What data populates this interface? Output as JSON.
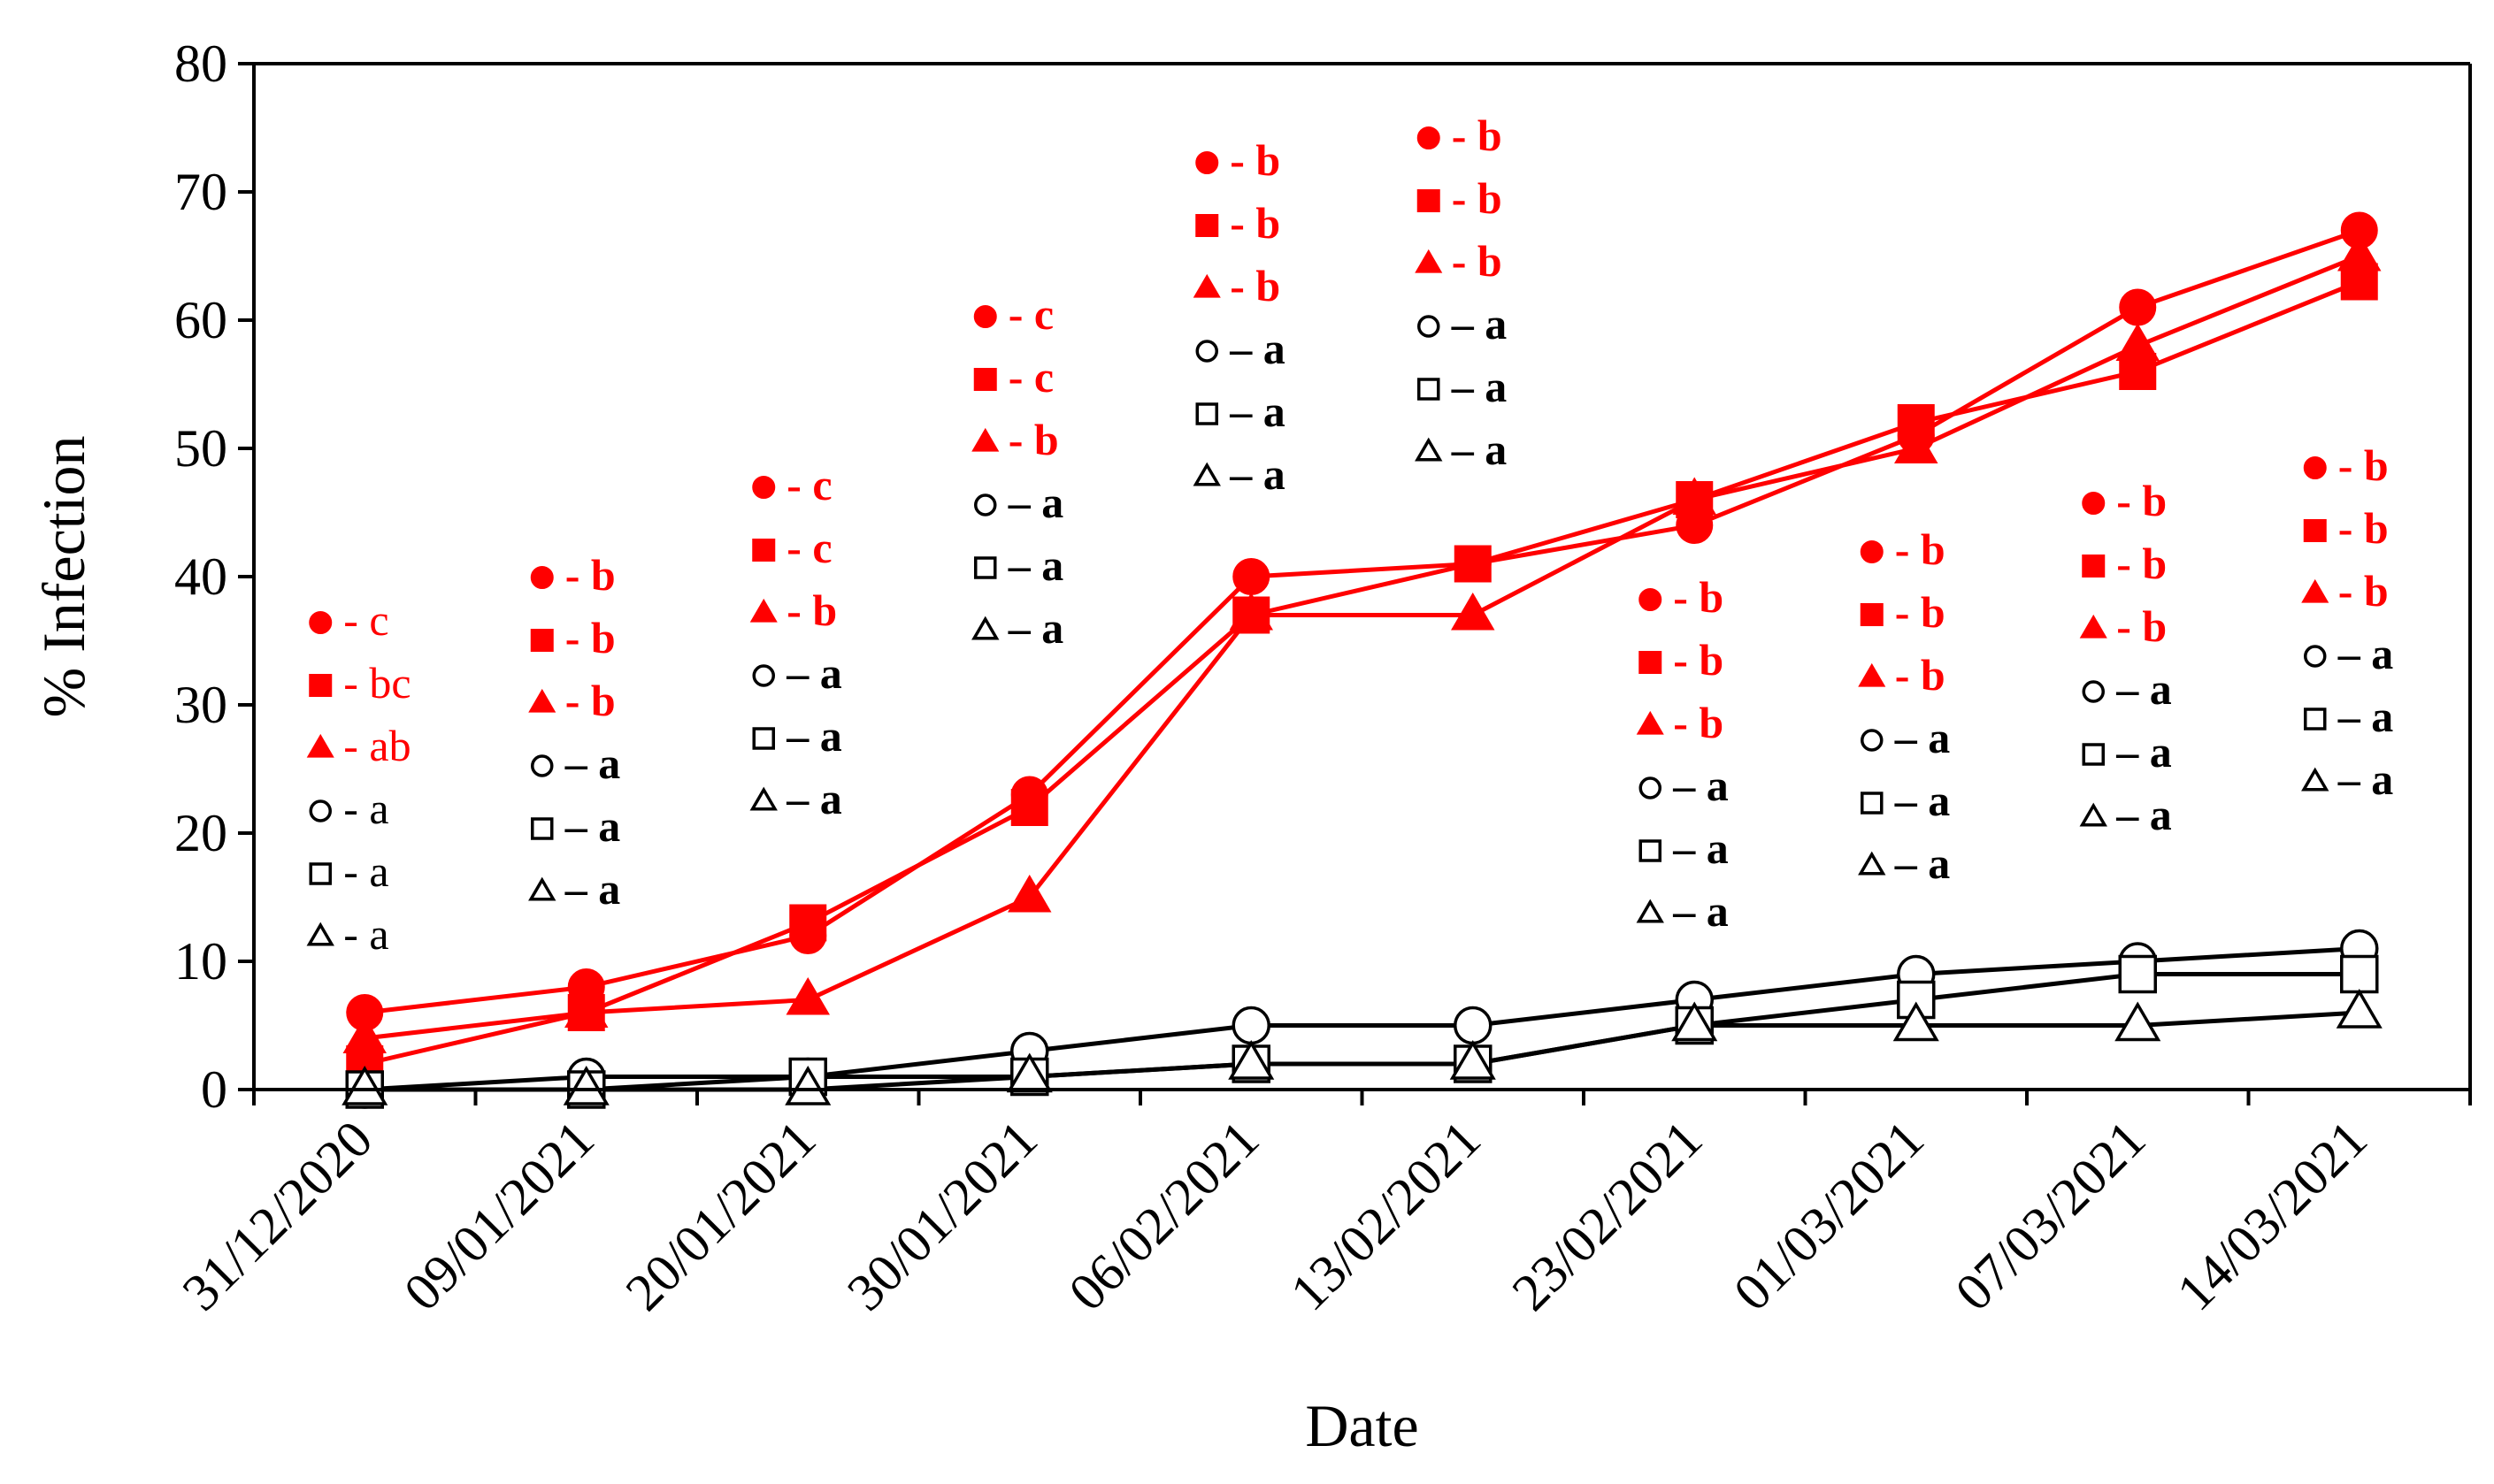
{
  "chart_data": {
    "type": "line",
    "title": "",
    "xlabel": "Date",
    "ylabel": "% Infection",
    "ylim": [
      0,
      80
    ],
    "yticks": [
      0,
      10,
      20,
      30,
      40,
      50,
      60,
      70,
      80
    ],
    "categories": [
      "31/12/2020",
      "09/01/2021",
      "20/01/2021",
      "30/01/2021",
      "06/02/2021",
      "13/02/2021",
      "23/02/2021",
      "01/03/2021",
      "07/03/2021",
      "14/03/2021"
    ],
    "colors": {
      "red": "#ff0000",
      "black": "#000000"
    },
    "series": [
      {
        "name": "filled circle",
        "marker": "circle",
        "filled": true,
        "color": "#ff0000",
        "values": [
          6,
          8,
          12,
          23,
          40,
          41,
          44,
          51,
          61,
          67
        ]
      },
      {
        "name": "filled square",
        "marker": "square",
        "filled": true,
        "color": "#ff0000",
        "values": [
          2,
          6,
          13,
          22,
          37,
          41,
          46,
          52,
          56,
          63
        ]
      },
      {
        "name": "filled triangle",
        "marker": "triangle",
        "filled": true,
        "color": "#ff0000",
        "values": [
          4,
          6,
          7,
          15,
          37,
          37,
          46,
          50,
          58,
          65
        ]
      },
      {
        "name": "open circle",
        "marker": "circle",
        "filled": false,
        "color": "#000000",
        "values": [
          0,
          1,
          1,
          3,
          5,
          5,
          7,
          9,
          10,
          11
        ]
      },
      {
        "name": "open square",
        "marker": "square",
        "filled": false,
        "color": "#000000",
        "values": [
          0,
          0,
          1,
          1,
          2,
          2,
          5,
          7,
          9,
          9
        ]
      },
      {
        "name": "open triangle",
        "marker": "triangle",
        "filled": false,
        "color": "#000000",
        "values": [
          0,
          0,
          0,
          1,
          2,
          2,
          5,
          5,
          5,
          6
        ]
      }
    ],
    "annotations": [
      {
        "category": "31/12/2020",
        "letters": [
          "- c",
          "- bc",
          "- ab",
          "- a",
          "- a",
          "- a"
        ]
      },
      {
        "category": "09/01/2021",
        "letters": [
          "- b",
          "- b",
          "- b",
          "– a",
          "– a",
          "– a"
        ]
      },
      {
        "category": "20/01/2021",
        "letters": [
          "- c",
          "- c",
          "- b",
          "– a",
          "– a",
          "– a"
        ]
      },
      {
        "category": "30/01/2021",
        "letters": [
          "- c",
          "- c",
          "- b",
          "– a",
          "– a",
          "– a"
        ]
      },
      {
        "category": "06/02/2021",
        "letters": [
          "- b",
          "- b",
          "- b",
          "– a",
          "– a",
          "– a"
        ]
      },
      {
        "category": "13/02/2021",
        "letters": [
          "- b",
          "- b",
          "- b",
          "– a",
          "– a",
          "– a"
        ]
      },
      {
        "category": "23/02/2021",
        "letters": [
          "- b",
          "- b",
          "- b",
          "– a",
          "– a",
          "– a"
        ]
      },
      {
        "category": "01/03/2021",
        "letters": [
          "- b",
          "- b",
          "- b",
          "– a",
          "– a",
          "– a"
        ]
      },
      {
        "category": "07/03/2021",
        "letters": [
          "- b",
          "- b",
          "- b",
          "– a",
          "– a",
          "– a"
        ]
      },
      {
        "category": "14/03/2021",
        "letters": [
          "- b",
          "- b",
          "- b",
          "– a",
          "– a",
          "– a"
        ]
      }
    ]
  }
}
